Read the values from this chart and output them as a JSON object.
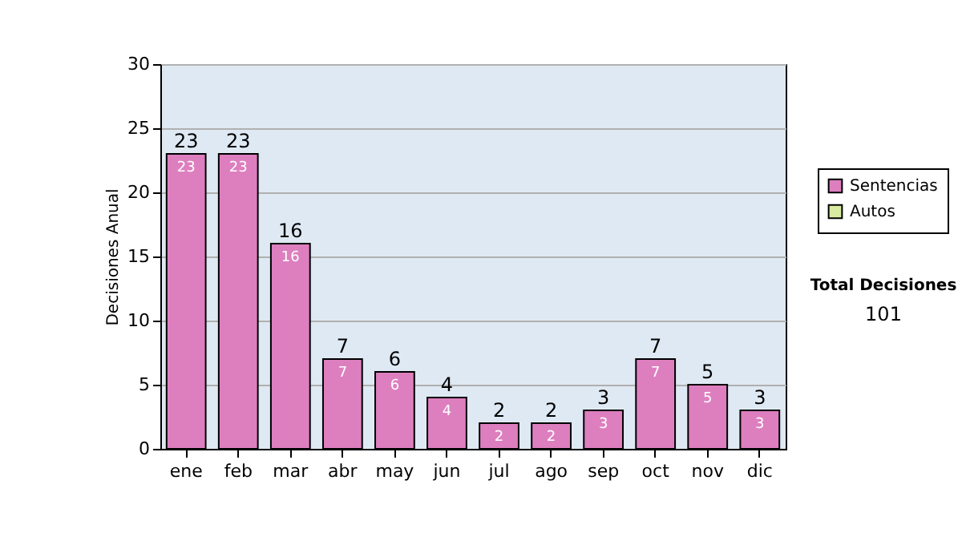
{
  "chart_data": {
    "type": "bar",
    "ylabel": "Decisiones Anual",
    "categories": [
      "ene",
      "feb",
      "mar",
      "abr",
      "may",
      "jun",
      "jul",
      "ago",
      "sep",
      "oct",
      "nov",
      "dic"
    ],
    "series": [
      {
        "name": "Sentencias",
        "color": "#dd7fbf",
        "values": [
          23,
          23,
          16,
          7,
          6,
          4,
          2,
          2,
          3,
          7,
          5,
          3
        ]
      },
      {
        "name": "Autos",
        "color": "#d8eba0",
        "values": [
          null,
          null,
          null,
          null,
          null,
          null,
          null,
          null,
          null,
          null,
          null,
          null
        ]
      }
    ],
    "stacked": true,
    "data_labels": true,
    "totals": [
      "23",
      "23",
      "16",
      "7",
      "6",
      "4",
      "2",
      "2",
      "3",
      "7",
      "5",
      "3"
    ],
    "ylim": [
      0,
      30
    ],
    "yticks": [
      0,
      5,
      10,
      15,
      20,
      25,
      30
    ],
    "grid": "y",
    "legend": "right",
    "annotations": [
      "Total Decisiones",
      "101"
    ]
  }
}
